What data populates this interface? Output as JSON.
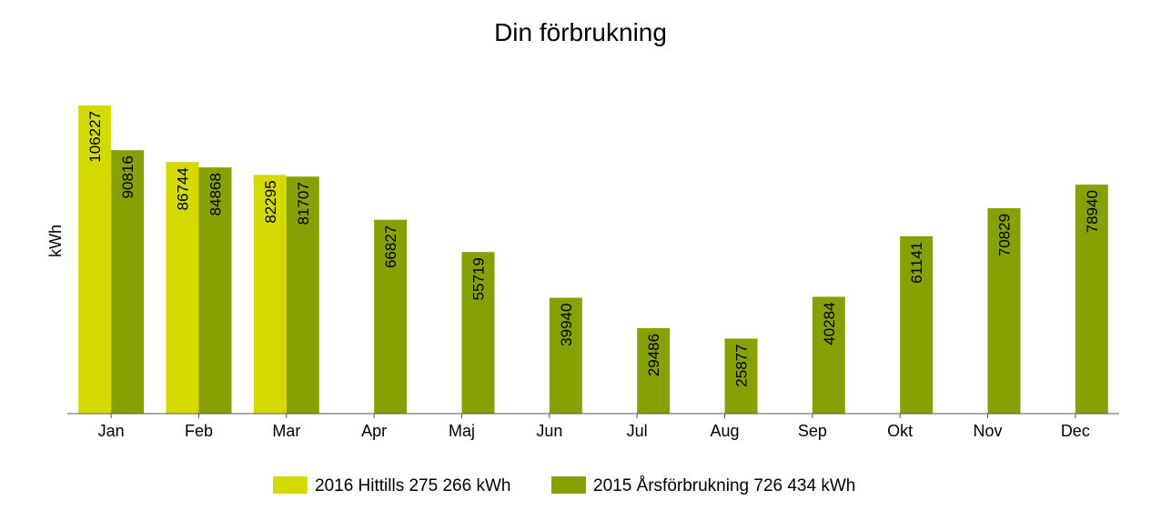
{
  "chart_data": {
    "type": "bar",
    "title": "Din förbrukning",
    "xlabel": "",
    "ylabel": "kWh",
    "categories": [
      "Jan",
      "Feb",
      "Mar",
      "Apr",
      "Maj",
      "Jun",
      "Jul",
      "Aug",
      "Sep",
      "Okt",
      "Nov",
      "Dec"
    ],
    "series": [
      {
        "name": "2016 Hittills 275 266 kWh",
        "color": "#d4da00",
        "values": [
          106227,
          86744,
          82295,
          null,
          null,
          null,
          null,
          null,
          null,
          null,
          null,
          null
        ]
      },
      {
        "name": "2015 Årsförbrukning 726 434 kWh",
        "color": "#87a004",
        "values": [
          90816,
          84868,
          81707,
          66827,
          55719,
          39940,
          29486,
          25877,
          40284,
          61141,
          70829,
          78940
        ]
      }
    ],
    "ylim": [
      0,
      106227
    ],
    "grid": false,
    "y_tick_labels": false,
    "data_labels": "rotated-inside-top",
    "legend_position": "bottom"
  }
}
